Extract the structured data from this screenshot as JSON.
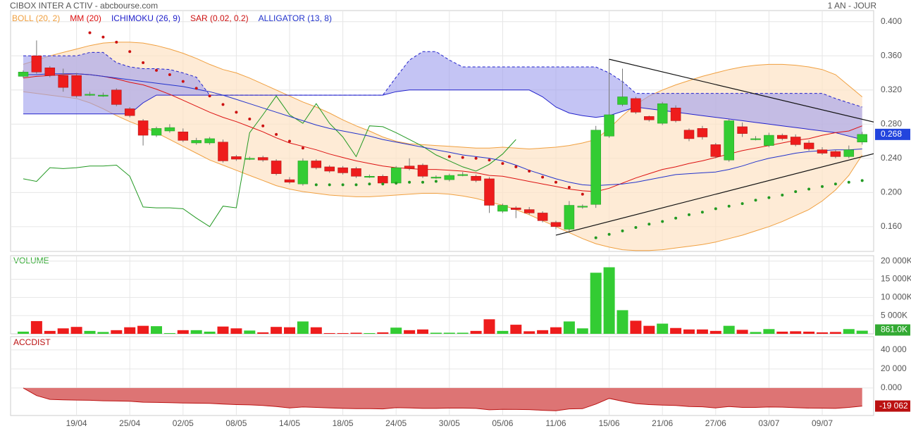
{
  "chart_data": {
    "type": "candlestick",
    "title": "CIBOX INTER A CTIV - abcbourse.com",
    "period": "1 AN - JOUR",
    "categories": [
      null,
      null,
      null,
      null,
      "19/04",
      null,
      null,
      null,
      "25/04",
      null,
      null,
      null,
      "02/05",
      null,
      null,
      null,
      "08/05",
      null,
      null,
      null,
      "14/05",
      null,
      null,
      null,
      "18/05",
      null,
      null,
      null,
      "24/05",
      null,
      null,
      null,
      "30/05",
      null,
      null,
      null,
      "05/06",
      null,
      null,
      null,
      "11/06",
      null,
      null,
      null,
      "15/06",
      null,
      null,
      null,
      "21/06",
      null,
      null,
      null,
      "27/06",
      null,
      null,
      null,
      "03/07",
      null,
      null,
      null,
      "09/07",
      null,
      null,
      null
    ],
    "open": [
      0.336,
      0.36,
      0.346,
      0.337,
      0.337,
      0.315,
      0.314,
      0.32,
      0.298,
      0.284,
      0.267,
      0.272,
      0.271,
      0.258,
      0.258,
      0.259,
      0.242,
      0.24,
      0.241,
      0.237,
      0.215,
      0.21,
      0.237,
      0.23,
      0.229,
      0.228,
      0.219,
      0.219,
      0.211,
      0.231,
      0.232,
      0.218,
      0.215,
      0.221,
      0.219,
      0.216,
      0.178,
      0.182,
      0.18,
      0.176,
      0.165,
      0.157,
      0.184,
      0.186,
      0.266,
      0.303,
      0.31,
      0.289,
      0.281,
      0.299,
      0.273,
      0.275,
      0.256,
      0.238,
      0.277,
      0.263,
      0.255,
      0.267,
      0.265,
      0.258,
      0.25,
      0.248,
      0.242,
      0.259
    ],
    "high": [
      0.343,
      0.378,
      0.348,
      0.345,
      0.34,
      0.318,
      0.317,
      0.322,
      0.3,
      0.286,
      0.277,
      0.28,
      0.275,
      0.264,
      0.265,
      0.262,
      0.244,
      0.242,
      0.243,
      0.239,
      0.218,
      0.24,
      0.239,
      0.232,
      0.231,
      0.23,
      0.221,
      0.221,
      0.231,
      0.24,
      0.234,
      0.22,
      0.222,
      0.224,
      0.221,
      0.218,
      0.187,
      0.184,
      0.183,
      0.178,
      0.167,
      0.19,
      0.186,
      0.278,
      0.356,
      0.345,
      0.312,
      0.29,
      0.306,
      0.302,
      0.275,
      0.278,
      0.258,
      0.286,
      0.282,
      0.266,
      0.27,
      0.269,
      0.268,
      0.261,
      0.253,
      0.25,
      0.255,
      0.271
    ],
    "low": [
      0.334,
      0.339,
      0.335,
      0.318,
      0.311,
      0.313,
      0.312,
      0.301,
      0.288,
      0.255,
      0.265,
      0.27,
      0.259,
      0.256,
      0.256,
      0.235,
      0.237,
      0.238,
      0.236,
      0.22,
      0.21,
      0.208,
      0.227,
      0.223,
      0.221,
      0.217,
      0.217,
      0.209,
      0.209,
      0.226,
      0.217,
      0.216,
      0.213,
      0.219,
      0.212,
      0.176,
      0.176,
      0.17,
      0.174,
      0.165,
      0.157,
      0.155,
      0.181,
      0.182,
      0.264,
      0.301,
      0.292,
      0.283,
      0.279,
      0.282,
      0.26,
      0.262,
      0.24,
      0.236,
      0.265,
      0.261,
      0.253,
      0.261,
      0.254,
      0.249,
      0.244,
      0.24,
      0.24,
      0.256
    ],
    "close": [
      0.341,
      0.341,
      0.337,
      0.323,
      0.313,
      0.315,
      0.314,
      0.303,
      0.29,
      0.267,
      0.275,
      0.276,
      0.261,
      0.261,
      0.263,
      0.237,
      0.239,
      0.24,
      0.238,
      0.222,
      0.212,
      0.237,
      0.229,
      0.225,
      0.223,
      0.219,
      0.219,
      0.211,
      0.229,
      0.228,
      0.219,
      0.218,
      0.22,
      0.221,
      0.214,
      0.185,
      0.185,
      0.18,
      0.176,
      0.167,
      0.16,
      0.185,
      0.184,
      0.273,
      0.291,
      0.312,
      0.294,
      0.285,
      0.304,
      0.284,
      0.263,
      0.265,
      0.242,
      0.284,
      0.269,
      0.263,
      0.267,
      0.263,
      0.256,
      0.251,
      0.246,
      0.242,
      0.25,
      0.268
    ],
    "up_color": "#33cc33",
    "down_color": "#ee1c1c",
    "last_color": "#2244dd",
    "ylim": [
      0.131,
      0.413
    ],
    "yticks": [
      {
        "value": 0.4,
        "label": "0.400"
      },
      {
        "value": 0.36,
        "label": "0.360"
      },
      {
        "value": 0.32,
        "label": "0.320"
      },
      {
        "value": 0.28,
        "label": "0.280"
      },
      {
        "value": 0.24,
        "label": "0.240"
      },
      {
        "value": 0.2,
        "label": "0.200"
      },
      {
        "value": 0.16,
        "label": "0.160"
      }
    ],
    "grid": true,
    "bollinger": {
      "name": "BOLL (20, 2)",
      "color": "#f0a040",
      "fill": "#fde3c4",
      "upper": [
        0.35,
        0.355,
        0.36,
        0.364,
        0.368,
        0.372,
        0.375,
        0.376,
        0.376,
        0.375,
        0.372,
        0.368,
        0.363,
        0.357,
        0.35,
        0.344,
        0.34,
        0.334,
        0.327,
        0.32,
        0.313,
        0.306,
        0.3,
        0.293,
        0.285,
        0.278,
        0.272,
        0.265,
        0.26,
        0.257,
        0.256,
        0.255,
        0.254,
        0.253,
        0.252,
        0.252,
        0.253,
        0.252,
        0.251,
        0.252,
        0.253,
        0.255,
        0.258,
        0.262,
        0.275,
        0.29,
        0.303,
        0.313,
        0.32,
        0.326,
        0.331,
        0.336,
        0.34,
        0.344,
        0.347,
        0.349,
        0.35,
        0.35,
        0.349,
        0.347,
        0.344,
        0.338,
        0.325,
        0.312
      ],
      "lower": [
        0.318,
        0.316,
        0.314,
        0.312,
        0.31,
        0.305,
        0.298,
        0.29,
        0.283,
        0.277,
        0.27,
        0.262,
        0.254,
        0.246,
        0.238,
        0.232,
        0.226,
        0.22,
        0.214,
        0.208,
        0.204,
        0.201,
        0.199,
        0.197,
        0.196,
        0.195,
        0.195,
        0.196,
        0.197,
        0.198,
        0.199,
        0.199,
        0.198,
        0.196,
        0.193,
        0.189,
        0.185,
        0.18,
        0.174,
        0.167,
        0.16,
        0.153,
        0.146,
        0.14,
        0.136,
        0.133,
        0.132,
        0.132,
        0.133,
        0.135,
        0.137,
        0.139,
        0.142,
        0.146,
        0.15,
        0.155,
        0.16,
        0.166,
        0.173,
        0.18,
        0.19,
        0.203,
        0.22,
        0.244
      ]
    },
    "mm": {
      "name": "MM (20)",
      "color": "#dd1111",
      "values": [
        0.334,
        0.336,
        0.337,
        0.338,
        0.339,
        0.338,
        0.336,
        0.333,
        0.329,
        0.326,
        0.321,
        0.315,
        0.308,
        0.301,
        0.294,
        0.288,
        0.283,
        0.277,
        0.271,
        0.264,
        0.258,
        0.254,
        0.25,
        0.245,
        0.241,
        0.237,
        0.234,
        0.231,
        0.229,
        0.228,
        0.227,
        0.227,
        0.226,
        0.225,
        0.223,
        0.22,
        0.219,
        0.216,
        0.213,
        0.21,
        0.207,
        0.204,
        0.202,
        0.201,
        0.205,
        0.211,
        0.217,
        0.222,
        0.227,
        0.23,
        0.234,
        0.237,
        0.241,
        0.245,
        0.249,
        0.252,
        0.255,
        0.258,
        0.261,
        0.263,
        0.267,
        0.27,
        0.272,
        0.278
      ]
    },
    "ichimoku": {
      "name": "ICHIMOKU (26, 9)",
      "color": "#2222cc",
      "fill": "#9c9cec",
      "chikou_color": "#229922",
      "span_a": [
        0.36,
        0.36,
        0.36,
        0.36,
        0.36,
        0.364,
        0.364,
        0.352,
        0.347,
        0.345,
        0.345,
        0.344,
        0.34,
        0.335,
        0.314,
        0.314,
        0.314,
        0.314,
        0.314,
        0.314,
        0.314,
        0.314,
        0.314,
        0.314,
        0.314,
        0.314,
        0.314,
        0.314,
        0.335,
        0.355,
        0.365,
        0.365,
        0.355,
        0.347,
        0.347,
        0.347,
        0.347,
        0.347,
        0.347,
        0.347,
        0.347,
        0.347,
        0.347,
        0.347,
        0.34,
        0.33,
        0.316,
        0.316,
        0.316,
        0.316,
        0.316,
        0.316,
        0.316,
        0.316,
        0.316,
        0.316,
        0.316,
        0.316,
        0.316,
        0.316,
        0.316,
        0.31,
        0.305,
        0.3
      ],
      "span_b": [
        0.292,
        0.292,
        0.292,
        0.292,
        0.292,
        0.292,
        0.292,
        0.292,
        0.292,
        0.305,
        0.314,
        0.314,
        0.314,
        0.314,
        0.314,
        0.314,
        0.314,
        0.314,
        0.314,
        0.314,
        0.314,
        0.314,
        0.314,
        0.314,
        0.314,
        0.314,
        0.314,
        0.314,
        0.318,
        0.32,
        0.32,
        0.32,
        0.32,
        0.32,
        0.32,
        0.32,
        0.32,
        0.32,
        0.32,
        0.312,
        0.3,
        0.293,
        0.29,
        0.288,
        0.29,
        0.295,
        0.3,
        0.298,
        0.296,
        0.294,
        0.292,
        0.29,
        0.288,
        0.286,
        0.284,
        0.282,
        0.28,
        0.278,
        0.276,
        0.274,
        0.272,
        0.27,
        0.266,
        0.262
      ],
      "chikou": [
        0.216,
        0.213,
        0.229,
        0.228,
        0.229,
        0.231,
        0.231,
        0.232,
        0.219,
        0.183,
        0.182,
        0.182,
        0.181,
        0.17,
        0.16,
        0.184,
        0.182,
        0.27,
        0.291,
        0.313,
        0.291,
        0.281,
        0.304,
        0.281,
        0.265,
        0.242,
        0.278,
        0.277,
        0.27,
        0.262,
        0.254,
        0.244,
        0.237,
        0.23,
        0.225,
        0.233,
        0.245,
        0.262,
        null,
        null,
        null,
        null,
        null,
        null,
        null,
        null,
        null,
        null,
        null,
        null,
        null,
        null,
        null,
        null,
        null,
        null,
        null,
        null,
        null,
        null,
        null,
        null,
        null,
        null
      ]
    },
    "sar": {
      "name": "SAR (0.02, 0.2)",
      "color": "#cc1111",
      "color_below": "#229922",
      "values": [
        null,
        null,
        null,
        null,
        null,
        0.387,
        0.382,
        0.376,
        0.365,
        0.352,
        0.343,
        0.338,
        0.33,
        0.322,
        0.313,
        0.303,
        0.294,
        0.286,
        0.278,
        0.268,
        0.26,
        0.252,
        0.209,
        0.209,
        0.209,
        0.209,
        0.21,
        0.21,
        0.211,
        0.212,
        0.212,
        0.213,
        0.242,
        0.241,
        0.24,
        0.238,
        0.234,
        0.23,
        0.225,
        0.218,
        0.212,
        0.206,
        0.198,
        0.147,
        0.151,
        0.155,
        0.159,
        0.163,
        0.166,
        0.17,
        0.174,
        0.177,
        0.181,
        0.184,
        0.187,
        0.191,
        0.194,
        0.197,
        0.201,
        0.204,
        0.207,
        0.21,
        0.212,
        0.214
      ]
    },
    "alligator": {
      "name": "ALLIGATOR (13, 8)",
      "color": "#2233cc",
      "values": [
        0.338,
        0.338,
        0.339,
        0.339,
        0.339,
        0.338,
        0.336,
        0.334,
        0.332,
        0.33,
        0.328,
        0.326,
        0.324,
        0.321,
        0.318,
        0.314,
        0.309,
        0.304,
        0.299,
        0.294,
        0.289,
        0.284,
        0.279,
        0.275,
        0.272,
        0.269,
        0.266,
        0.262,
        0.259,
        0.256,
        0.253,
        0.25,
        0.247,
        0.244,
        0.242,
        0.24,
        0.237,
        0.232,
        0.226,
        0.221,
        0.216,
        0.212,
        0.209,
        0.208,
        0.209,
        0.21,
        0.212,
        0.215,
        0.218,
        0.221,
        0.222,
        0.223,
        0.224,
        0.227,
        0.231,
        0.236,
        0.24,
        0.243,
        0.246,
        0.248,
        0.249,
        0.25,
        0.25,
        0.251
      ]
    },
    "trendlines": [
      {
        "x": [
          44,
          64
        ],
        "y": [
          0.356,
          0.282
        ]
      },
      {
        "x": [
          40,
          64
        ],
        "y": [
          0.15,
          0.246
        ]
      }
    ],
    "volume": {
      "title": "VOLUME",
      "color": "#33aa33",
      "values": [
        600,
        3500,
        800,
        1500,
        1900,
        800,
        500,
        1000,
        1800,
        2200,
        2100,
        200,
        1000,
        1000,
        600,
        2000,
        1500,
        900,
        400,
        1900,
        1800,
        3400,
        1800,
        200,
        200,
        300,
        200,
        400,
        1700,
        1000,
        1200,
        300,
        300,
        300,
        800,
        4000,
        800,
        2500,
        700,
        1000,
        1800,
        3400,
        1500,
        16800,
        18300,
        6500,
        3600,
        2200,
        2800,
        1600,
        1200,
        1200,
        800,
        2200,
        1100,
        500,
        1300,
        600,
        700,
        600,
        400,
        500,
        1300,
        861
      ],
      "last_value_label": "861.0K",
      "ylim": [
        0,
        21500
      ],
      "yticks": [
        {
          "value": 20000,
          "label": "20 000K"
        },
        {
          "value": 15000,
          "label": "15 000K"
        },
        {
          "value": 10000,
          "label": "10 000K"
        },
        {
          "value": 5000,
          "label": "5 000K"
        }
      ]
    },
    "accdist": {
      "title": "ACCDIST",
      "color": "#bb1111",
      "fill": "#dd7474",
      "values": [
        0,
        -8000,
        -12000,
        -12500,
        -12800,
        -13000,
        -13500,
        -13700,
        -14000,
        -15000,
        -15200,
        -15500,
        -15800,
        -16000,
        -16200,
        -17000,
        -17500,
        -17800,
        -18500,
        -19500,
        -21000,
        -20000,
        -20500,
        -21000,
        -21500,
        -21800,
        -21800,
        -22000,
        -20800,
        -21000,
        -21500,
        -21500,
        -21200,
        -21200,
        -21500,
        -23000,
        -22500,
        -22600,
        -22800,
        -23500,
        -24000,
        -22000,
        -21800,
        -17000,
        -11000,
        -14000,
        -16500,
        -17500,
        -18000,
        -18500,
        -19500,
        -19800,
        -21000,
        -19500,
        -20500,
        -20500,
        -20000,
        -20200,
        -20800,
        -21200,
        -21300,
        -21500,
        -20500,
        -19062
      ],
      "last_value_label": "-19 062",
      "ylim": [
        -29000,
        54000
      ],
      "yticks": [
        {
          "value": 40000,
          "label": "40 000"
        },
        {
          "value": 20000,
          "label": "20 000"
        },
        {
          "value": 0,
          "label": "0.000"
        }
      ]
    }
  }
}
